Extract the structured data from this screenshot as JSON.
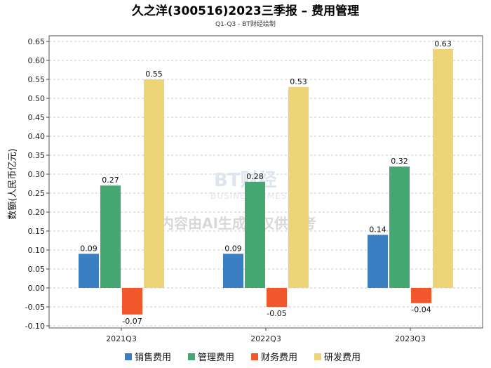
{
  "chart_data": {
    "type": "bar",
    "title": "久之洋(300516)2023三季报 – 费用管理",
    "subtitle": "Q1-Q3 - BT财经绘制",
    "xlabel": "",
    "ylabel": "数额(人民币亿元)",
    "ylim": [
      -0.1,
      0.65
    ],
    "ytick_step": 0.05,
    "grid": true,
    "legend_position": "bottom",
    "categories": [
      "2021Q3",
      "2022Q3",
      "2023Q3"
    ],
    "series": [
      {
        "name": "销售费用",
        "color": "#3a7fc1",
        "values": [
          0.09,
          0.09,
          0.14
        ]
      },
      {
        "name": "管理费用",
        "color": "#45a872",
        "values": [
          0.27,
          0.28,
          0.32
        ]
      },
      {
        "name": "财务费用",
        "color": "#f0572a",
        "values": [
          -0.07,
          -0.05,
          -0.04
        ]
      },
      {
        "name": "研发费用",
        "color": "#edd577",
        "values": [
          0.55,
          0.53,
          0.63
        ]
      }
    ]
  },
  "watermark": {
    "logo": "BT财经",
    "logo_sub": "BUSINESSTIMES",
    "note": "内容由AI生成，仅供参考"
  }
}
